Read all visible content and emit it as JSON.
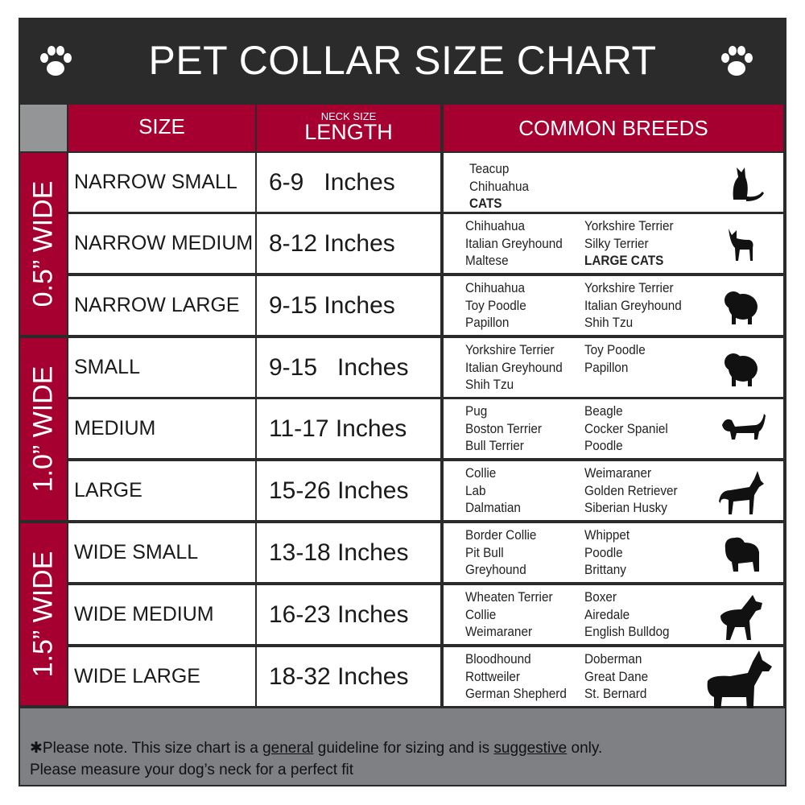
{
  "title": "PET COLLAR SIZE CHART",
  "headers": {
    "size": "SIZE",
    "neck_small": "NECK SIZE",
    "length": "LENGTH",
    "breeds": "COMMON BREEDS"
  },
  "colors": {
    "frame": "#2b2b2b",
    "accent": "#a5002f",
    "gray": "#7f8083"
  },
  "groups": [
    {
      "label": "0.5” WIDE"
    },
    {
      "label": "1.0” WIDE"
    },
    {
      "label": "1.5” WIDE"
    }
  ],
  "rows": [
    {
      "size": "NARROW SMALL",
      "length": "6-9   Inches",
      "col1": [
        "Teacup",
        "Chihuahua",
        "CATS"
      ],
      "col2": [],
      "bold": [
        "CATS"
      ],
      "icon": "cat-icon"
    },
    {
      "size": "NARROW MEDIUM",
      "length": "8-12 Inches",
      "col1": [
        "Chihuahua",
        "Italian Greyhound",
        "Maltese"
      ],
      "col2": [
        "Yorkshire Terrier",
        "Silky Terrier",
        "LARGE CATS"
      ],
      "bold": [
        "LARGE CATS"
      ],
      "icon": "chihuahua-icon"
    },
    {
      "size": "NARROW LARGE",
      "length": "9-15 Inches",
      "col1": [
        "Chihuahua",
        "Toy Poodle",
        "Papillon"
      ],
      "col2": [
        "Yorkshire Terrier",
        "Italian Greyhound",
        "Shih Tzu"
      ],
      "bold": [],
      "icon": "pomeranian-icon"
    },
    {
      "size": "SMALL",
      "length": "9-15   Inches",
      "col1": [
        "Yorkshire Terrier",
        "Italian Greyhound",
        "Shih Tzu"
      ],
      "col2": [
        "Toy Poodle",
        "Papillon"
      ],
      "bold": [],
      "icon": "pomeranian-icon"
    },
    {
      "size": "MEDIUM",
      "length": "11-17 Inches",
      "col1": [
        "Pug",
        "Boston Terrier",
        "Bull Terrier"
      ],
      "col2": [
        "Beagle",
        "Cocker Spaniel",
        "Poodle"
      ],
      "bold": [],
      "icon": "dachshund-icon"
    },
    {
      "size": "LARGE",
      "length": "15-26 Inches",
      "col1": [
        "Collie",
        "Lab",
        "Dalmatian"
      ],
      "col2": [
        "Weimaraner",
        "Golden Retriever",
        "Siberian Husky"
      ],
      "bold": [],
      "icon": "shepherd-icon"
    },
    {
      "size": "WIDE SMALL",
      "length": "13-18 Inches",
      "col1": [
        "Border Collie",
        "Pit Bull",
        "Greyhound"
      ],
      "col2": [
        "Whippet",
        "Poodle",
        "Brittany"
      ],
      "bold": [],
      "icon": "bulldog-icon"
    },
    {
      "size": "WIDE MEDIUM",
      "length": "16-23 Inches",
      "col1": [
        "Wheaten Terrier",
        "Collie",
        "Weimaraner"
      ],
      "col2": [
        "Boxer",
        "Airedale",
        "English Bulldog"
      ],
      "bold": [],
      "icon": "pitbull-icon"
    },
    {
      "size": "WIDE LARGE",
      "length": "18-32 Inches",
      "col1": [
        "Bloodhound",
        "Rottweiler",
        "German Shepherd"
      ],
      "col2": [
        "Doberman",
        "Great Dane",
        "St. Bernard"
      ],
      "bold": [],
      "icon": "doberman-icon"
    }
  ],
  "footer": {
    "p1": "✱Please note. This size chart is a ",
    "u1": "general",
    "p2": " guideline for sizing and is ",
    "u2": "suggestive",
    "p3": " only.",
    "line2": "Please measure your dog’s neck for a perfect fit"
  }
}
